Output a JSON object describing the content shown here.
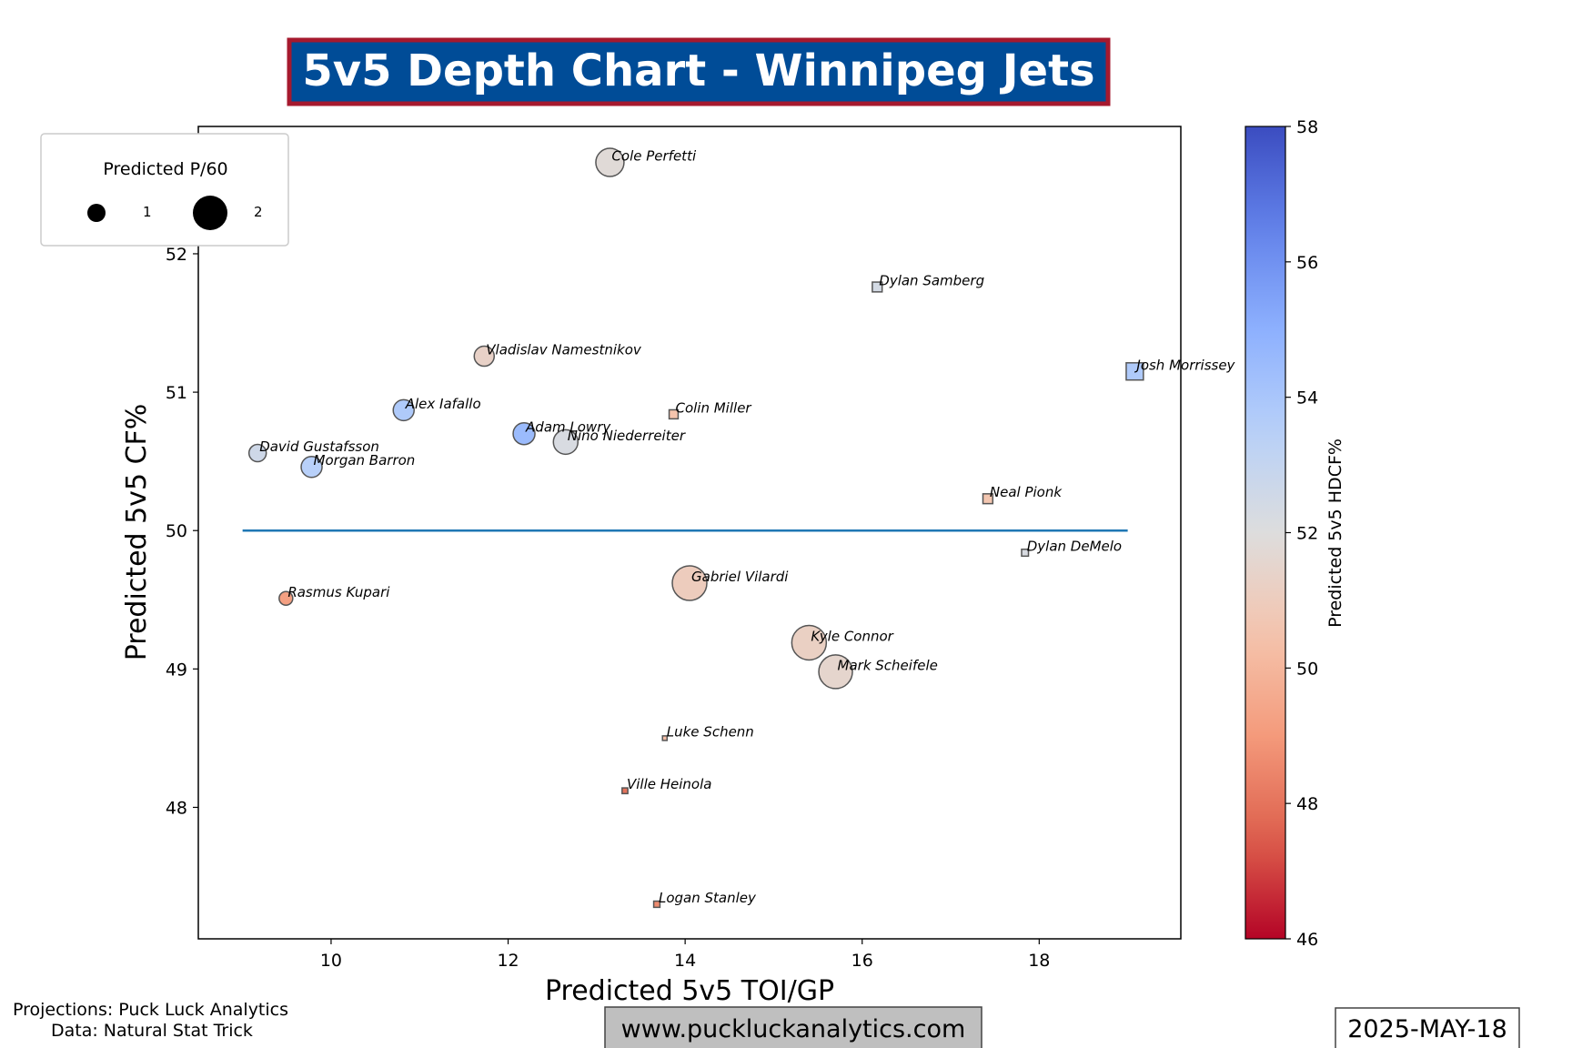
{
  "title": "5v5 Depth Chart - Winnipeg Jets",
  "colors": {
    "title_bg": "#004c97",
    "title_border": "#a6192e",
    "title_text": "#ffffff",
    "average_line": "#1f77b4",
    "marker_edge": "#555555",
    "url_box_bg": "#bfbfbf"
  },
  "footer": {
    "source_line1": "Projections: Puck Luck Analytics",
    "source_line2": "Data: Natural Stat Trick",
    "url": "www.puckluckanalytics.com",
    "date": "2025-MAY-18"
  },
  "legend": {
    "title": "Predicted P/60",
    "entries": [
      {
        "label": "1",
        "p60": 1
      },
      {
        "label": "2",
        "p60": 2
      }
    ],
    "placement": "upper-left"
  },
  "colorbar": {
    "label": "Predicted 5v5 HDCF%",
    "min": 46,
    "max": 58,
    "ticks": [
      "46",
      "48",
      "50",
      "52",
      "54",
      "56",
      "58"
    ],
    "colormap": "coolwarm"
  },
  "chart_data": {
    "type": "scatter",
    "xlabel": "Predicted 5v5 TOI/GP",
    "ylabel": "Predicted 5v5 CF%",
    "xlim": [
      8.5,
      19.6
    ],
    "ylim": [
      47.05,
      52.92
    ],
    "xticks": [
      "10",
      "12",
      "14",
      "16",
      "18"
    ],
    "yticks": [
      "48",
      "49",
      "50",
      "51",
      "52"
    ],
    "average_line": {
      "y": 50,
      "x_range": [
        9.0,
        19.0
      ]
    },
    "marker_shapes": {
      "circle": "forward",
      "square": "defense"
    },
    "points": [
      {
        "name": "Cole Perfetti",
        "x": 13.15,
        "y": 52.66,
        "hdcf": 51.8,
        "p60": 1.55,
        "shape": "circle"
      },
      {
        "name": "Dylan Samberg",
        "x": 16.17,
        "y": 51.76,
        "hdcf": 52.4,
        "p60": 0.6,
        "shape": "square"
      },
      {
        "name": "Vladislav Namestnikov",
        "x": 11.73,
        "y": 51.26,
        "hdcf": 51.3,
        "p60": 1.1,
        "shape": "circle"
      },
      {
        "name": "Josh Morrissey",
        "x": 19.08,
        "y": 51.15,
        "hdcf": 53.8,
        "p60": 1.05,
        "shape": "square"
      },
      {
        "name": "Alex Iafallo",
        "x": 10.82,
        "y": 50.87,
        "hdcf": 53.8,
        "p60": 1.15,
        "shape": "circle"
      },
      {
        "name": "Colin Miller",
        "x": 13.87,
        "y": 50.84,
        "hdcf": 50.5,
        "p60": 0.55,
        "shape": "square"
      },
      {
        "name": "Adam Lowry",
        "x": 12.18,
        "y": 50.7,
        "hdcf": 54.5,
        "p60": 1.2,
        "shape": "circle"
      },
      {
        "name": "Nino Niederreiter",
        "x": 12.65,
        "y": 50.64,
        "hdcf": 52.2,
        "p60": 1.35,
        "shape": "circle"
      },
      {
        "name": "David Gustafsson",
        "x": 9.17,
        "y": 50.56,
        "hdcf": 52.6,
        "p60": 0.95,
        "shape": "circle"
      },
      {
        "name": "Morgan Barron",
        "x": 9.78,
        "y": 50.46,
        "hdcf": 53.5,
        "p60": 1.15,
        "shape": "circle"
      },
      {
        "name": "Neal Pionk",
        "x": 17.42,
        "y": 50.23,
        "hdcf": 50.6,
        "p60": 0.6,
        "shape": "square"
      },
      {
        "name": "Dylan DeMelo",
        "x": 17.84,
        "y": 49.84,
        "hdcf": 52.2,
        "p60": 0.42,
        "shape": "square"
      },
      {
        "name": "Rasmus Kupari",
        "x": 9.49,
        "y": 49.51,
        "hdcf": 49.2,
        "p60": 0.75,
        "shape": "circle"
      },
      {
        "name": "Gabriel Vilardi",
        "x": 14.05,
        "y": 49.62,
        "hdcf": 51.0,
        "p60": 1.9,
        "shape": "circle"
      },
      {
        "name": "Kyle Connor",
        "x": 15.4,
        "y": 49.19,
        "hdcf": 51.2,
        "p60": 1.9,
        "shape": "circle"
      },
      {
        "name": "Mark Scheifele",
        "x": 15.7,
        "y": 48.98,
        "hdcf": 51.5,
        "p60": 1.85,
        "shape": "circle"
      },
      {
        "name": "Luke Schenn",
        "x": 13.77,
        "y": 48.5,
        "hdcf": 50.3,
        "p60": 0.28,
        "shape": "square"
      },
      {
        "name": "Ville Heinola",
        "x": 13.32,
        "y": 48.12,
        "hdcf": 48.0,
        "p60": 0.35,
        "shape": "square"
      },
      {
        "name": "Logan Stanley",
        "x": 13.68,
        "y": 47.3,
        "hdcf": 48.6,
        "p60": 0.38,
        "shape": "square"
      }
    ]
  }
}
